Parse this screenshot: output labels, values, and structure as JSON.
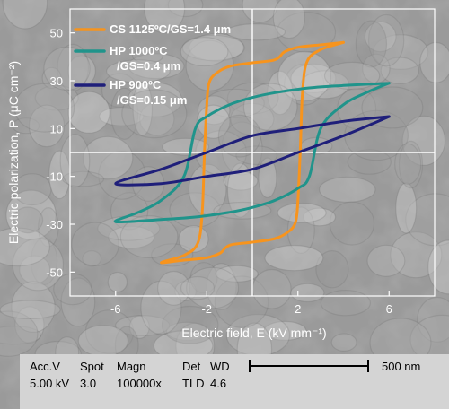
{
  "chart_data": {
    "type": "line",
    "xlabel": "Electric field, E (kV mm⁻¹)",
    "ylabel": "Electric polarization, P (μC cm⁻²)",
    "xlim": [
      -8,
      8
    ],
    "ylim": [
      -60,
      60
    ],
    "xticks": [
      -6,
      -2,
      2,
      6
    ],
    "yticks": [
      -50,
      -30,
      -10,
      10,
      30,
      50
    ],
    "grid": false,
    "zero_lines": true,
    "legend_position": "top-left",
    "background": "SEM micrograph of grains",
    "series": [
      {
        "name": "CS 1125ºC/GS=1.4 μm",
        "legend_lines": [
          "CS 1125ºC/GS=1.4 μm"
        ],
        "color": "#f7941d",
        "x": [
          4,
          3,
          2,
          1.4,
          1.2,
          0.9,
          0,
          -1.0,
          -1.6,
          -1.9,
          -2.0,
          -2.1,
          -2.2,
          -2.4,
          -3,
          -4,
          -3,
          -2,
          -1.4,
          -1.2,
          -0.9,
          0,
          1.0,
          1.6,
          1.9,
          2.0,
          2.1,
          2.2,
          2.4,
          3,
          4
        ],
        "y": [
          46,
          45,
          44,
          42,
          40,
          38.5,
          37.5,
          36,
          33,
          29,
          20,
          0,
          -25,
          -38,
          -43,
          -46,
          -45,
          -44,
          -42,
          -40,
          -38.5,
          -37.5,
          -36,
          -33,
          -29,
          -20,
          0,
          25,
          38,
          43,
          46
        ]
      },
      {
        "name": "HP 1000ºC /GS=0.4 μm",
        "legend_lines": [
          "HP 1000ºC",
          "/GS=0.4 μm"
        ],
        "color": "#20948b",
        "x": [
          6,
          4,
          2.5,
          1,
          0,
          -1,
          -2,
          -2.5,
          -3,
          -4,
          -5,
          -6,
          -4,
          -2.5,
          -1,
          0,
          1,
          2,
          2.5,
          3,
          4,
          5,
          6
        ],
        "y": [
          29,
          28,
          27,
          25,
          23,
          20,
          15,
          10,
          -10,
          -20,
          -25,
          -29,
          -28,
          -27,
          -25,
          -23,
          -20,
          -15,
          -10,
          10,
          20,
          25,
          29
        ]
      },
      {
        "name": "HP 900ºC /GS=0.15 μm",
        "legend_lines": [
          "HP 900ºC",
          "/GS=0.15 μm"
        ],
        "color": "#1f1f7a",
        "x": [
          6,
          4,
          2,
          0,
          -2,
          -4,
          -6,
          -4,
          -2,
          0,
          2,
          4,
          6
        ],
        "y": [
          15,
          13,
          10,
          7,
          0,
          -7,
          -13,
          -13,
          -10,
          -7,
          0,
          7,
          15
        ]
      }
    ]
  },
  "databar": {
    "headers": [
      "Acc.V",
      "Spot",
      "Magn",
      "Det",
      "WD"
    ],
    "values": [
      "5.00 kV",
      "3.0",
      "100000x",
      "TLD",
      "4.6"
    ],
    "scale_label": "500 nm"
  }
}
